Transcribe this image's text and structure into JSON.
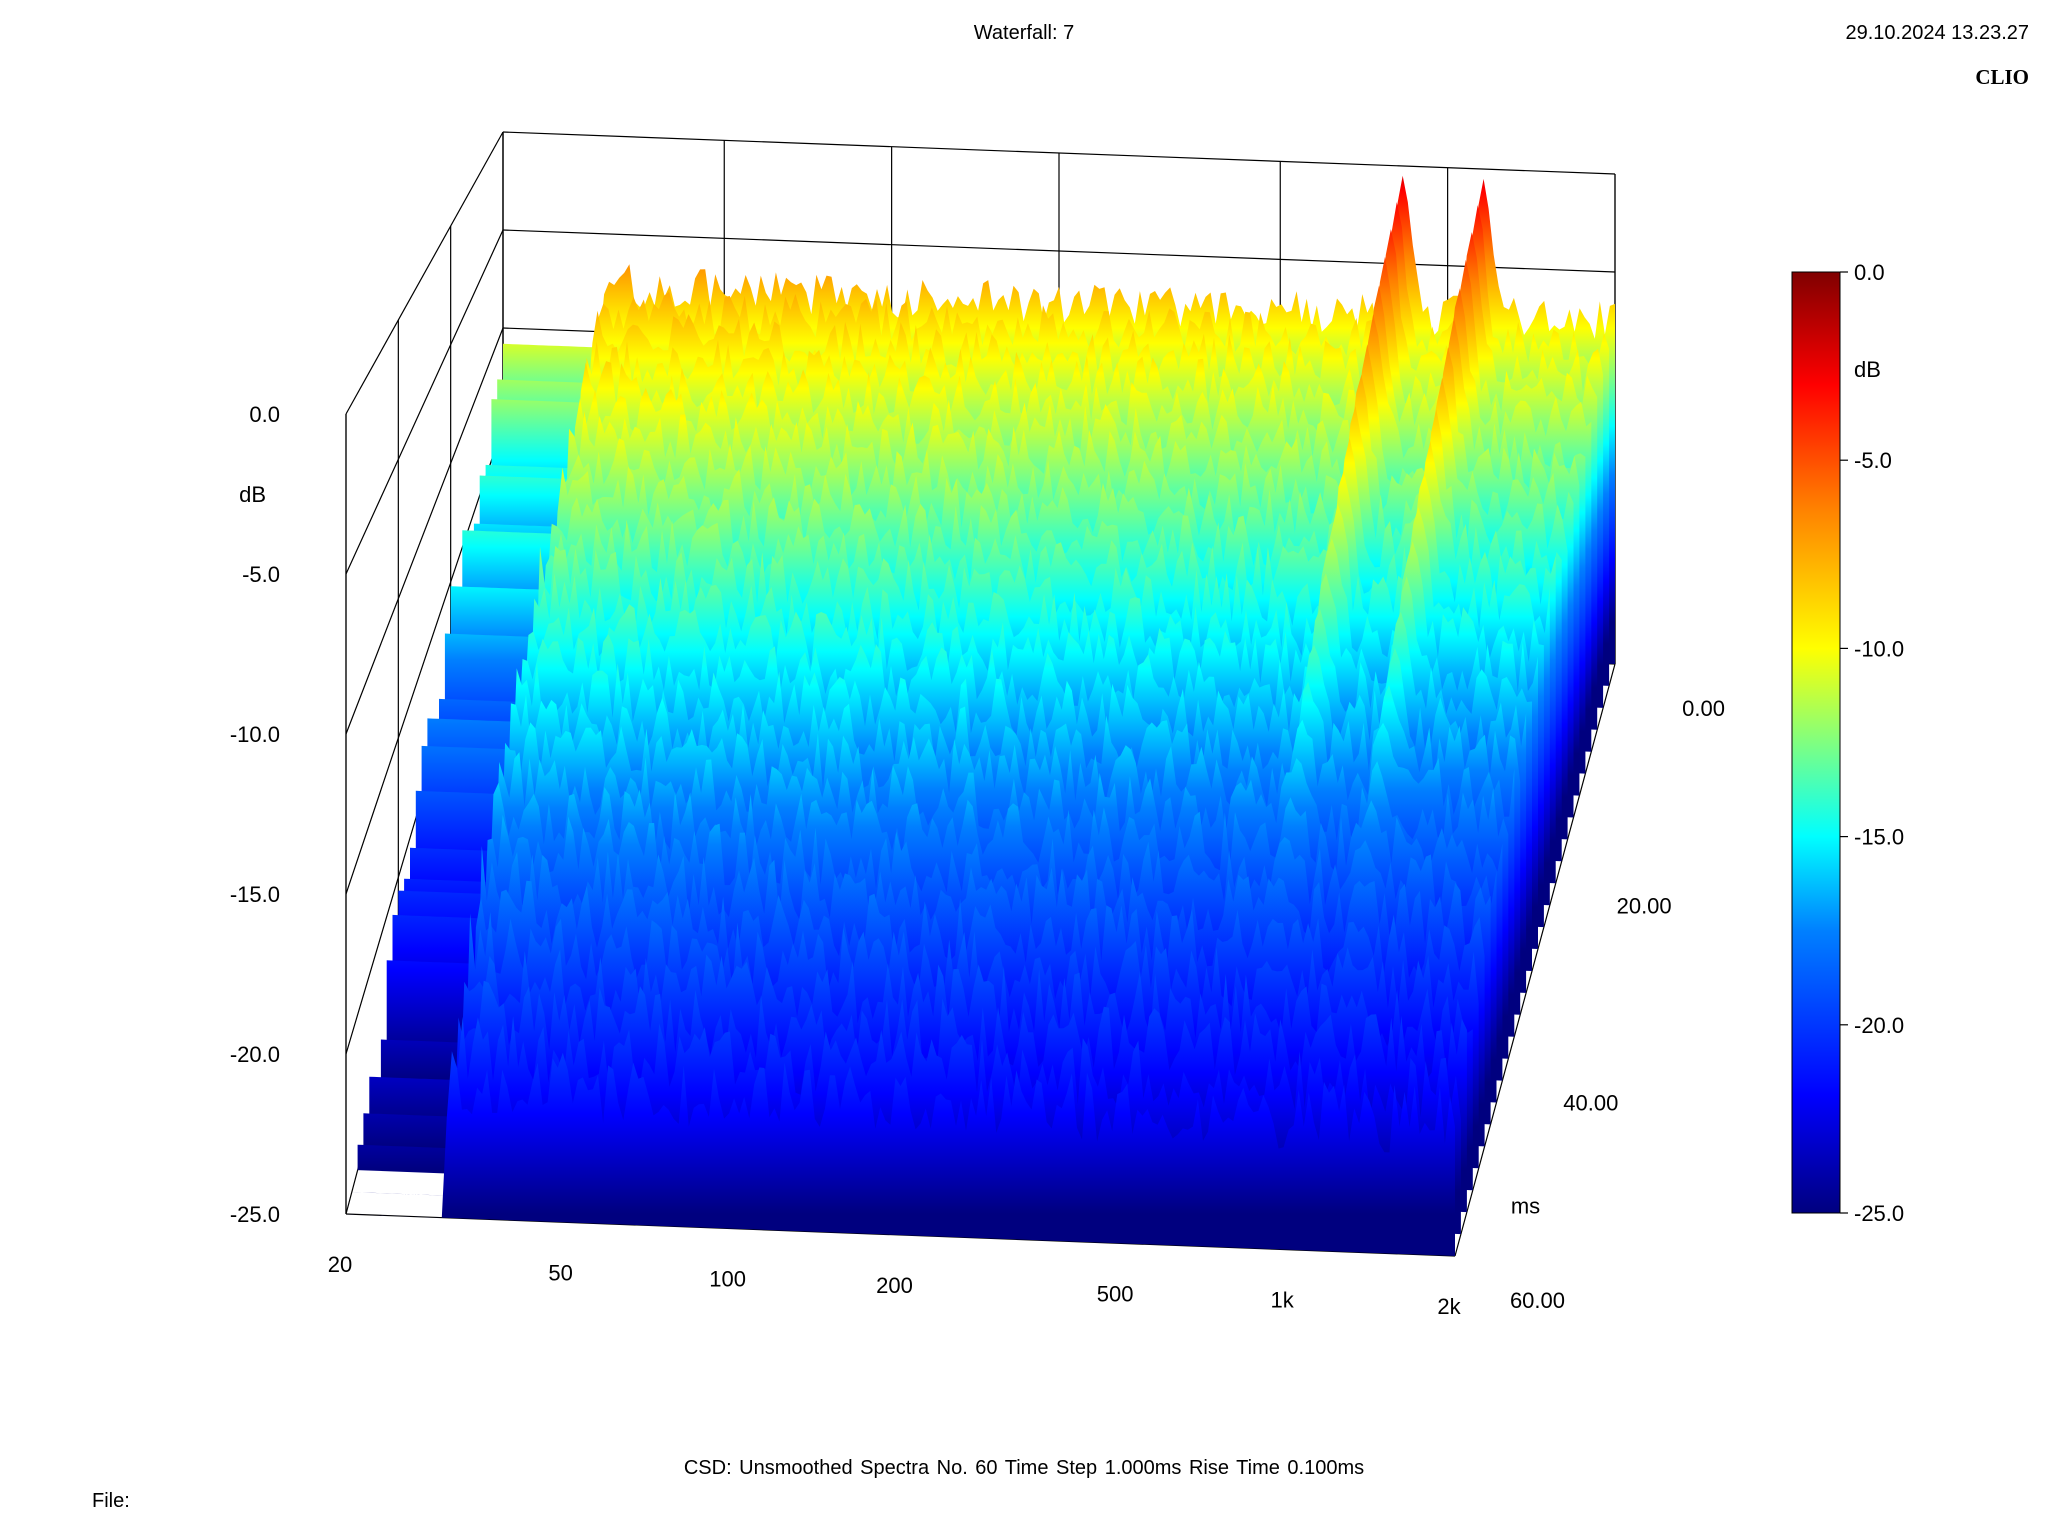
{
  "header": {
    "title": "Waterfall: 7",
    "datetime": "29.10.2024 13.23.27",
    "brand": "CLIO"
  },
  "footer": {
    "settings": "CSD:   Unsmoothed   Spectra No. 60   Time Step 1.000ms   Rise Time 0.100ms",
    "file_label": "File:"
  },
  "chart_data": {
    "type": "waterfall",
    "x_axis": {
      "scale": "log",
      "range": [
        20,
        2000
      ],
      "tick_labels": [
        "20",
        "50",
        "100",
        "200",
        "500",
        "1k",
        "2k"
      ],
      "tick_values": [
        20,
        50,
        100,
        200,
        500,
        1000,
        2000
      ]
    },
    "y_axis": {
      "range": [
        -25,
        0
      ],
      "unit": "dB",
      "tick_labels": [
        "0.0",
        "-5.0",
        "-10.0",
        "-15.0",
        "-20.0",
        "-25.0"
      ],
      "tick_values": [
        0,
        -5,
        -10,
        -15,
        -20,
        -25
      ]
    },
    "z_axis": {
      "range": [
        0,
        60
      ],
      "unit": "ms",
      "tick_labels": [
        "0.00",
        "20.00",
        "40.00",
        "60.00"
      ],
      "tick_values": [
        0,
        20,
        40,
        60
      ]
    },
    "colorbar": {
      "range": [
        -25,
        0
      ],
      "unit": "dB",
      "tick_labels": [
        "0.0",
        "-5.0",
        "-10.0",
        "-15.0",
        "-20.0",
        "-25.0"
      ],
      "colors": [
        "#00007f",
        "#0000ff",
        "#0080ff",
        "#00ffff",
        "#80ff80",
        "#ffff00",
        "#ff8000",
        "#ff0000",
        "#800000"
      ]
    },
    "spectra_count": 60,
    "time_step_ms": 1.0,
    "peaks": [
      {
        "freq_hz": 830,
        "level_db": -0.5
      },
      {
        "freq_hz": 1160,
        "level_db": -0.5
      },
      {
        "freq_hz": 1050,
        "level_db": -6.5
      },
      {
        "freq_hz": 1620,
        "level_db": -8.0
      },
      {
        "freq_hz": 1950,
        "level_db": -8.2
      }
    ],
    "first_spectrum_floor_db": -6.0,
    "grid": true
  }
}
